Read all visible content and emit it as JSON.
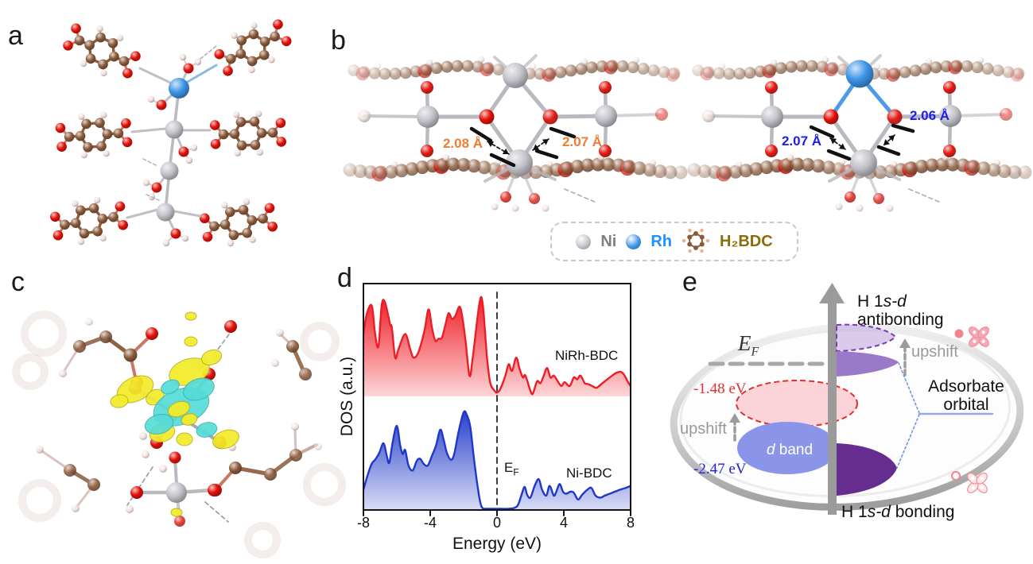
{
  "panel_labels": {
    "a": "a",
    "b": "b",
    "c": "c",
    "d": "d",
    "e": "e"
  },
  "palette": {
    "carbon": "#8B5A3B",
    "oxygen": "#E31209",
    "hydrogen": "#F2E2DE",
    "nickel": "#C2C2CA",
    "rhodium": "#3D95E8",
    "isosurface_positive": "#F2EC2A",
    "isosurface_negative": "#55DCD8"
  },
  "panel_b": {
    "left_structure_labels": [
      "2.08 Å",
      "2.07 Å"
    ],
    "right_structure_labels": [
      "2.07 Å",
      "2.06 Å"
    ],
    "left_label_color": "#ED7D31",
    "right_label_color": "#1C1CEE",
    "legend": {
      "items": [
        {
          "label": "Ni",
          "sphere_color": "#C2C2CA",
          "text_color": "#7F7F7F"
        },
        {
          "label": "Rh",
          "sphere_color": "#3D95E8",
          "text_color": "#1E90FF"
        },
        {
          "label": "H₂BDC",
          "text_color": "#8A6D0A"
        }
      ]
    }
  },
  "chart_data": {
    "type": "area-line",
    "title": "",
    "xlabel": "Energy (eV)",
    "ylabel": "DOS (a.u.)",
    "xlim": [
      -8,
      8
    ],
    "xticks": [
      -8,
      -4,
      0,
      4,
      8
    ],
    "xtick_labels": [
      "-8",
      "-4",
      "0",
      "4",
      "8"
    ],
    "grid": false,
    "fermi": {
      "x": 0,
      "label_main": "E",
      "label_sub": "F"
    },
    "series": [
      {
        "name": "NiRh-BDC",
        "color": "#EE1C25",
        "points": [
          [
            -8,
            0.66
          ],
          [
            -7.8,
            0.87
          ],
          [
            -7.5,
            0.96
          ],
          [
            -7.3,
            0.66
          ],
          [
            -7.1,
            0.53
          ],
          [
            -6.9,
            0.97
          ],
          [
            -6.7,
            0.99
          ],
          [
            -6.4,
            0.76
          ],
          [
            -6.3,
            0.73
          ],
          [
            -6.1,
            0.41
          ],
          [
            -5.9,
            0.5
          ],
          [
            -5.5,
            0.66
          ],
          [
            -5.2,
            0.5
          ],
          [
            -5,
            0.41
          ],
          [
            -4.7,
            0.47
          ],
          [
            -4.35,
            0.69
          ],
          [
            -4.1,
            0.92
          ],
          [
            -3.9,
            0.73
          ],
          [
            -3.7,
            0.59
          ],
          [
            -3.5,
            0.61
          ],
          [
            -3.3,
            0.62
          ],
          [
            -3.1,
            0.75
          ],
          [
            -2.9,
            0.88
          ],
          [
            -2.7,
            0.82
          ],
          [
            -2.5,
            0.85
          ],
          [
            -2.2,
            0.94
          ],
          [
            -1.9,
            0.61
          ],
          [
            -1.65,
            0.22
          ],
          [
            -1.45,
            0.41
          ],
          [
            -1.05,
            0.99
          ],
          [
            -0.85,
            0.97
          ],
          [
            -0.6,
            0.41
          ],
          [
            -0.4,
            0.14
          ],
          [
            -0.15,
            0.06
          ],
          [
            0,
            0.04
          ],
          [
            0.2,
            0.08
          ],
          [
            0.5,
            0.22
          ],
          [
            0.7,
            0.34
          ],
          [
            0.9,
            0.27
          ],
          [
            1.15,
            0.41
          ],
          [
            1.35,
            0.29
          ],
          [
            1.55,
            0.2
          ],
          [
            1.7,
            0.22
          ],
          [
            2,
            0.06
          ],
          [
            2.15,
            0.03
          ],
          [
            2.4,
            0.16
          ],
          [
            2.6,
            0.14
          ],
          [
            2.8,
            0.22
          ],
          [
            3,
            0.3
          ],
          [
            3.2,
            0.2
          ],
          [
            3.4,
            0.22
          ],
          [
            3.6,
            0.17
          ],
          [
            3.85,
            0.11
          ],
          [
            4.05,
            0.15
          ],
          [
            4.35,
            0.11
          ],
          [
            4.6,
            0.2
          ],
          [
            4.8,
            0.18
          ],
          [
            5,
            0.22
          ],
          [
            5.25,
            0.14
          ],
          [
            5.45,
            0.13
          ],
          [
            5.7,
            0.11
          ],
          [
            5.95,
            0.09
          ],
          [
            6.25,
            0.13
          ],
          [
            6.6,
            0.18
          ],
          [
            6.9,
            0.22
          ],
          [
            7.15,
            0.25
          ],
          [
            7.4,
            0.26
          ],
          [
            7.6,
            0.23
          ],
          [
            7.85,
            0.15
          ],
          [
            8,
            0.11
          ]
        ]
      },
      {
        "name": "Ni-BDC",
        "color": "#2038C8",
        "points": [
          [
            -8,
            0.2
          ],
          [
            -7.75,
            0.35
          ],
          [
            -7.5,
            0.47
          ],
          [
            -7.3,
            0.51
          ],
          [
            -7.05,
            0.58
          ],
          [
            -6.8,
            0.68
          ],
          [
            -6.6,
            0.55
          ],
          [
            -6.45,
            0.48
          ],
          [
            -6.25,
            0.69
          ],
          [
            -6,
            0.86
          ],
          [
            -5.8,
            0.66
          ],
          [
            -5.65,
            0.57
          ],
          [
            -5.5,
            0.61
          ],
          [
            -5.3,
            0.45
          ],
          [
            -5.05,
            0.4
          ],
          [
            -4.8,
            0.5
          ],
          [
            -4.6,
            0.52
          ],
          [
            -4.4,
            0.47
          ],
          [
            -4.15,
            0.45
          ],
          [
            -3.9,
            0.55
          ],
          [
            -3.65,
            0.66
          ],
          [
            -3.4,
            0.82
          ],
          [
            -3.2,
            0.72
          ],
          [
            -3,
            0.58
          ],
          [
            -2.75,
            0.51
          ],
          [
            -2.55,
            0.58
          ],
          [
            -2.3,
            0.8
          ],
          [
            -2,
            1
          ],
          [
            -1.8,
            0.97
          ],
          [
            -1.6,
            0.85
          ],
          [
            -1.4,
            0.55
          ],
          [
            -1.2,
            0.28
          ],
          [
            -1,
            0.07
          ],
          [
            -0.85,
            0.01
          ],
          [
            -0.6,
            0.005
          ],
          [
            0,
            0.005
          ],
          [
            0.7,
            0.005
          ],
          [
            1.2,
            0.03
          ],
          [
            1.45,
            0.14
          ],
          [
            1.65,
            0.23
          ],
          [
            1.8,
            0.15
          ],
          [
            2,
            0.12
          ],
          [
            2.25,
            0.24
          ],
          [
            2.5,
            0.31
          ],
          [
            2.7,
            0.2
          ],
          [
            2.95,
            0.14
          ],
          [
            3.15,
            0.24
          ],
          [
            3.4,
            0.14
          ],
          [
            3.55,
            0.18
          ],
          [
            3.75,
            0.26
          ],
          [
            3.95,
            0.18
          ],
          [
            4.15,
            0.16
          ],
          [
            4.4,
            0.18
          ],
          [
            4.6,
            0.17
          ],
          [
            4.85,
            0.1
          ],
          [
            5.1,
            0.15
          ],
          [
            5.4,
            0.2
          ],
          [
            5.65,
            0.22
          ],
          [
            5.9,
            0.14
          ],
          [
            6.2,
            0.12
          ],
          [
            6.45,
            0.14
          ],
          [
            6.75,
            0.16
          ],
          [
            7.05,
            0.18
          ],
          [
            7.35,
            0.2
          ],
          [
            7.7,
            0.22
          ],
          [
            8,
            0.24
          ]
        ]
      }
    ]
  },
  "panel_e": {
    "antibonding_line1_a": "H 1",
    "antibonding_line1_b": "s-d",
    "antibonding_line2": "antibonding",
    "bonding_a": "H 1",
    "bonding_b": "s-d",
    "bonding_c": " bonding",
    "upshift": "upshift",
    "ef_main": "E",
    "ef_sub": "F",
    "dband_italic": "d",
    "dband_rest": " band",
    "adsorbate_line1": "Adsorbate",
    "adsorbate_line2": "orbital",
    "dband_shifted_value": "-1.48 eV",
    "dband_value": "-2.47 eV",
    "red_color": "#E03131",
    "blue_color": "#2121D8",
    "solid_band_color": "#8A95EA",
    "shifted_band_fill": "#FAD4D8",
    "upper_peak_color": "#9A79C8",
    "dashed_peak_stroke": "#7A3AB8",
    "dashed_peak_fill": "#CBB5E2",
    "lower_peak_color": "#662D91"
  }
}
